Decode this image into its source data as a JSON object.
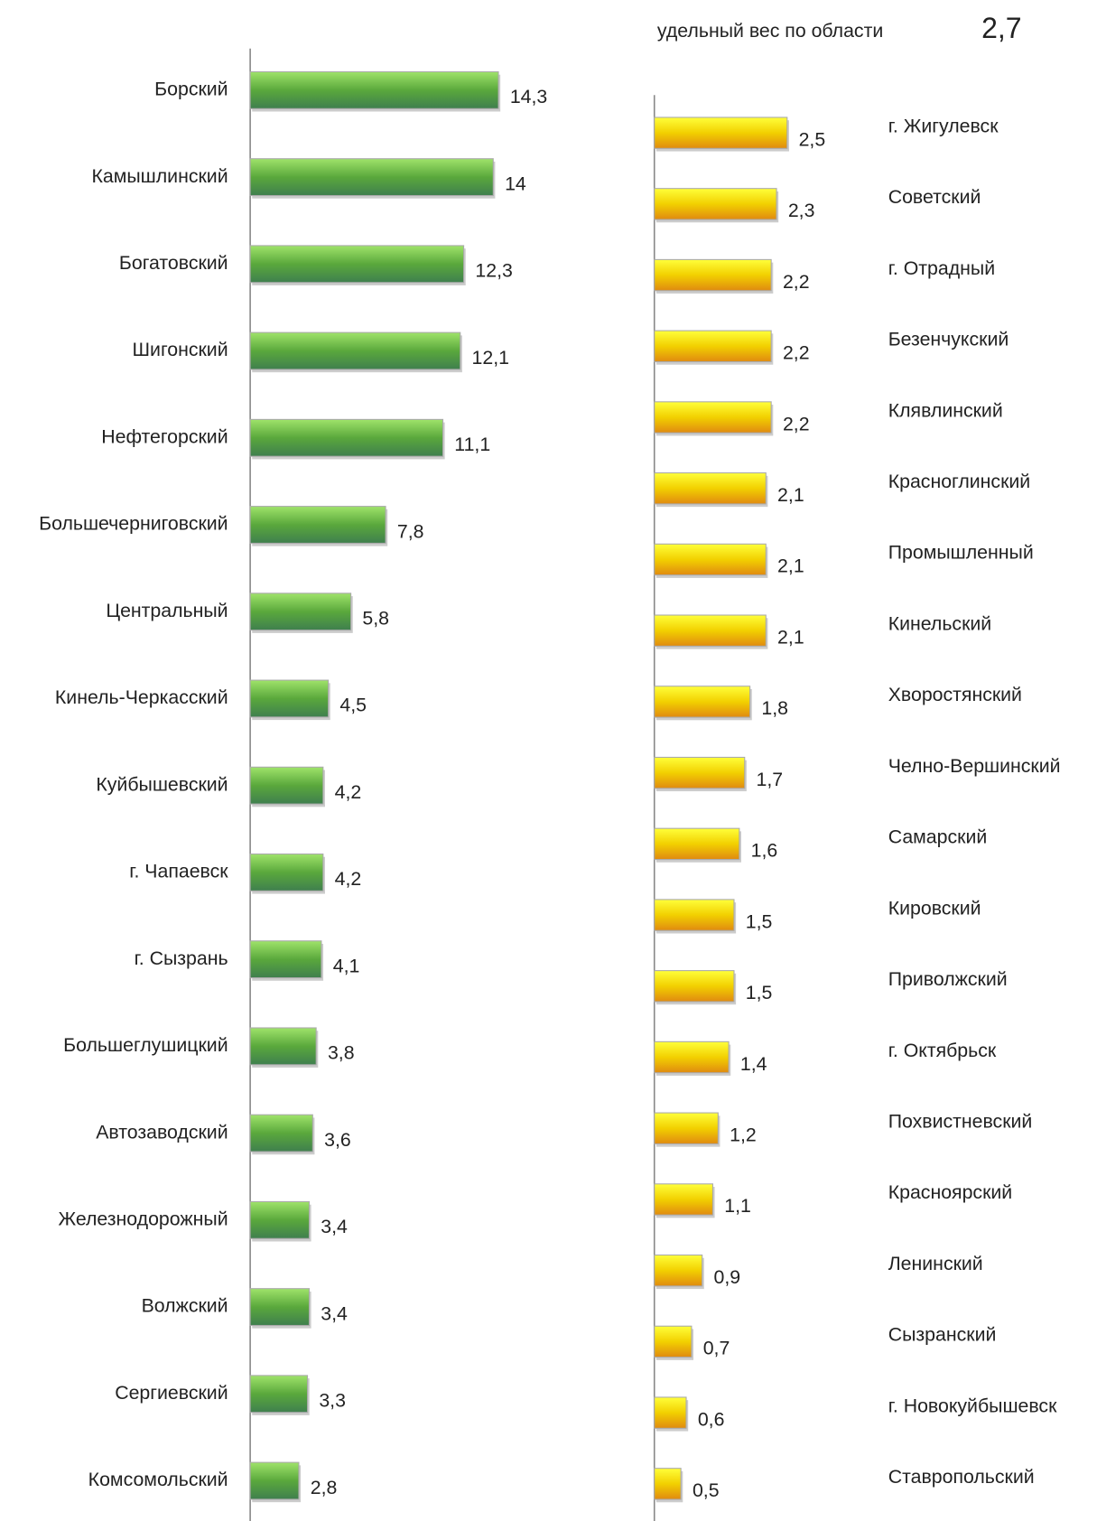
{
  "chart_data": [
    {
      "type": "bar",
      "orientation": "horizontal",
      "categories": [
        "Борский",
        "Камышлинский",
        "Богатовский",
        "Шигонский",
        "Нефтегорский",
        "Большечерниговский",
        "Центральный",
        "Кинель-Черкасский",
        "Куйбышевский",
        "г. Чапаевск",
        "г. Сызрань",
        "Большеглушицкий",
        "Автозаводский",
        "Железнодорожный",
        "Волжский",
        "Сергиевский",
        "Комсомольский"
      ],
      "values": [
        14.3,
        14,
        12.3,
        12.1,
        11.1,
        7.8,
        5.8,
        4.5,
        4.2,
        4.2,
        4.1,
        3.8,
        3.6,
        3.4,
        3.4,
        3.3,
        2.8
      ],
      "value_labels": [
        "14,3",
        "14",
        "12,3",
        "12,1",
        "11,1",
        "7,8",
        "5,8",
        "4,5",
        "4,2",
        "4,2",
        "4,1",
        "3,8",
        "3,6",
        "3,4",
        "3,4",
        "3,3",
        "2,8"
      ],
      "color": "#5aa83c"
    },
    {
      "type": "bar",
      "orientation": "horizontal",
      "annotation": "удельный вес по области",
      "annotation_value": "2,7",
      "categories": [
        "г. Жигулевск",
        "Советский",
        "г. Отрадный",
        "Безенчукский",
        "Клявлинский",
        "Красноглинский",
        "Промышленный",
        "Кинельский",
        "Хворостянский",
        "Челно-Вершинский",
        "Самарский",
        "Кировский",
        "Приволжский",
        "г. Октябрьск",
        "Похвистневский",
        "Красноярский",
        "Ленинский",
        "Сызранский",
        "г. Новокуйбышевск",
        "Ставропольский"
      ],
      "values": [
        2.5,
        2.3,
        2.2,
        2.2,
        2.2,
        2.1,
        2.1,
        2.1,
        1.8,
        1.7,
        1.6,
        1.5,
        1.5,
        1.4,
        1.2,
        1.1,
        0.9,
        0.7,
        0.6,
        0.5
      ],
      "value_labels": [
        "2,5",
        "2,3",
        "2,2",
        "2,2",
        "2,2",
        "2,1",
        "2,1",
        "2,1",
        "1,8",
        "1,7",
        "1,6",
        "1,5",
        "1,5",
        "1,4",
        "1,2",
        "1,1",
        "0,9",
        "0,7",
        "0,6",
        "0,5"
      ],
      "color": "#f2b800"
    }
  ]
}
